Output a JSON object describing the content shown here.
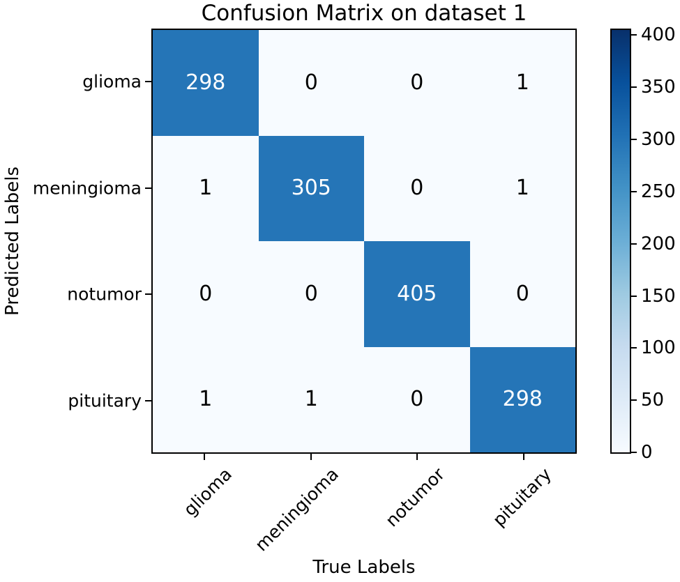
{
  "chart_data": {
    "type": "heatmap",
    "title": "Confusion Matrix on dataset 1",
    "xlabel": "True Labels",
    "ylabel": "Predicted Labels",
    "categories": [
      "glioma",
      "meningioma",
      "notumor",
      "pituitary"
    ],
    "matrix": [
      [
        298,
        0,
        0,
        1
      ],
      [
        1,
        305,
        0,
        1
      ],
      [
        0,
        0,
        405,
        0
      ],
      [
        1,
        1,
        0,
        298
      ]
    ],
    "colorbar": {
      "ticks": [
        0,
        50,
        100,
        150,
        200,
        250,
        300,
        350,
        400
      ],
      "vmin": 0,
      "vmax": 405,
      "cmap_name": "Blues",
      "gradient_stops": [
        "#f7fbff",
        "#deebf7",
        "#c6dbef",
        "#9ecae1",
        "#6baed6",
        "#4292c6",
        "#2171b5",
        "#08519c",
        "#08306b"
      ],
      "legend_position": "right"
    },
    "colors": {
      "diagonal_cell": "#2575b7",
      "off_cell": "#f7fbff",
      "text_on_dark": "#ffffff",
      "text_on_light": "#000000",
      "axis": "#000000"
    },
    "grid": "off"
  }
}
